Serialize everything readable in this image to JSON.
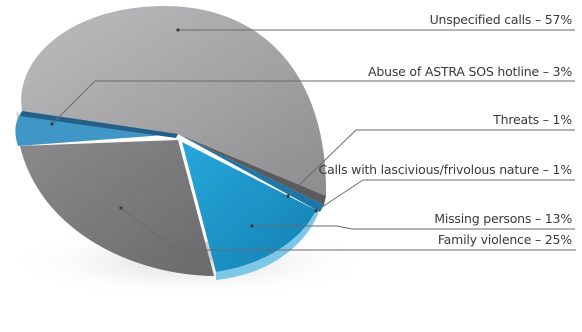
{
  "chart_data": {
    "type": "pie",
    "style": "3d-tilted-exploded",
    "title": "",
    "slices": [
      {
        "label": "Unspecified calls – 57%",
        "value": 57,
        "color": "#a3a3a5"
      },
      {
        "label": "Abuse of ASTRA SOS hotline – 3%",
        "value": 3,
        "color": "#3f96c7"
      },
      {
        "label": "Threats – 1%",
        "value": 1,
        "color": "#7a7a7c"
      },
      {
        "label": "Calls with lascivious/frivolous nature – 1%",
        "value": 1,
        "color": "#1d76a8"
      },
      {
        "label": "Missing persons – 13%",
        "value": 13,
        "color": "#1b93c6"
      },
      {
        "label": "Family violence – 25%",
        "value": 25,
        "color": "#7c7c7e"
      }
    ],
    "legend": "callout labels on right"
  }
}
